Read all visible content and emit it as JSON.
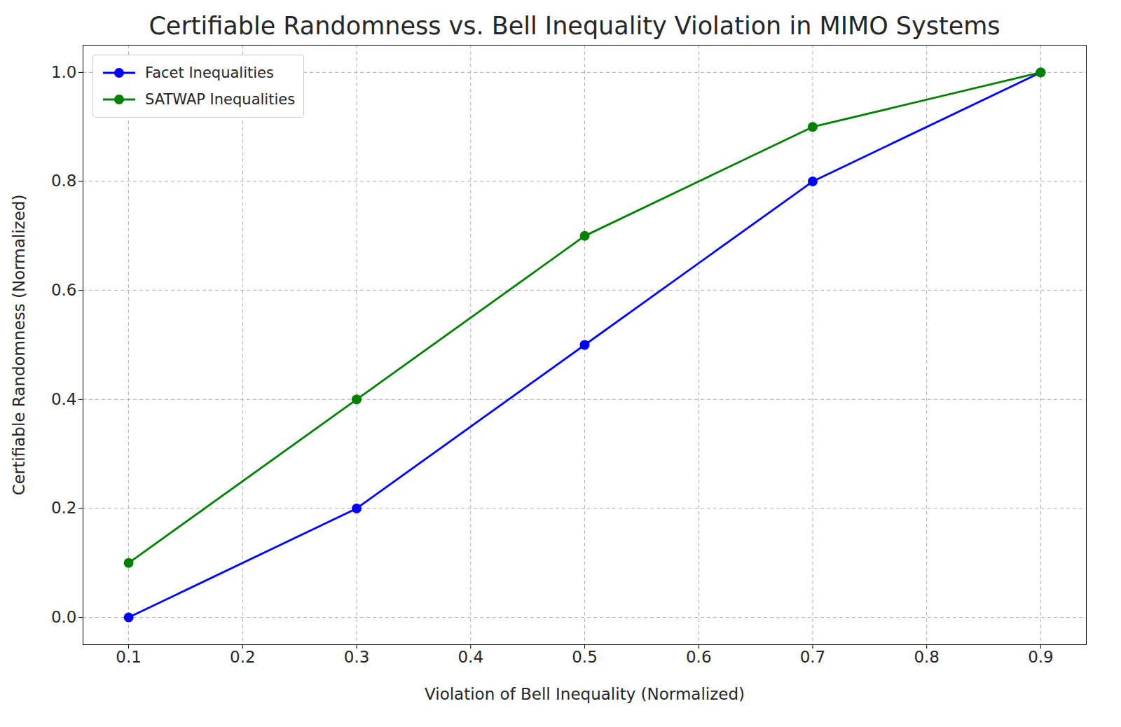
{
  "chart_data": {
    "type": "line",
    "title": "Certifiable Randomness vs. Bell Inequality Violation in MIMO Systems",
    "x_label": "Violation of Bell Inequality (Normalized)",
    "y_label": "Certifiable Randomness (Normalized)",
    "x": [
      0.1,
      0.3,
      0.5,
      0.7,
      0.9
    ],
    "series": [
      {
        "name": "Facet Inequalities",
        "color": "#0000ff",
        "marker": "circle",
        "line_style": "solid",
        "values": [
          0.0,
          0.2,
          0.5,
          0.8,
          1.0
        ]
      },
      {
        "name": "SATWAP Inequalities",
        "color": "#008000",
        "marker": "circle",
        "line_style": "solid",
        "values": [
          0.1,
          0.4,
          0.7,
          0.9,
          1.0
        ]
      }
    ],
    "xlim": [
      0.06,
      0.94
    ],
    "ylim": [
      -0.05,
      1.05
    ],
    "xticks": [
      0.1,
      0.2,
      0.3,
      0.4,
      0.5,
      0.6,
      0.7,
      0.8,
      0.9
    ],
    "yticks": [
      {
        "value": 0.0,
        "label": "0.0"
      },
      0.2,
      0.4,
      0.6,
      0.8,
      {
        "value": 1.0,
        "label": "1.0"
      }
    ],
    "grid": true,
    "legend": "upper left"
  }
}
